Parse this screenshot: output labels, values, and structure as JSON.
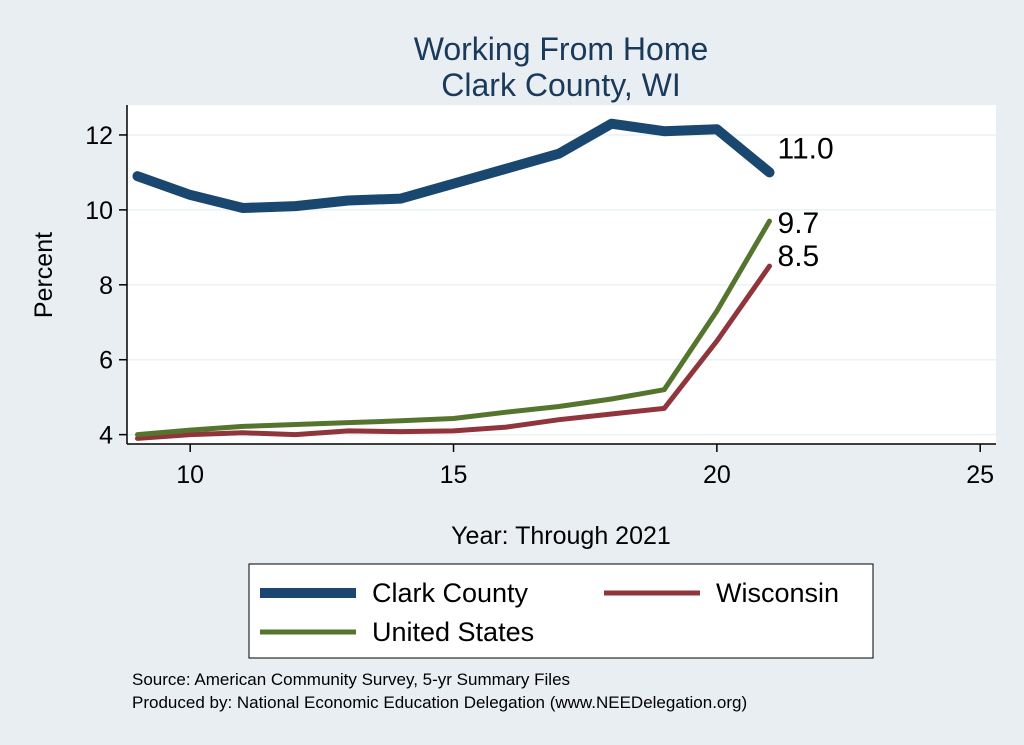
{
  "chart_data": {
    "type": "line",
    "title": [
      "Working From Home",
      "Clark County, WI"
    ],
    "xlabel": "Year: Through 2021",
    "ylabel": "Percent",
    "xlim": [
      8.8,
      25.3
    ],
    "ylim": [
      3.75,
      12.8
    ],
    "xticks": [
      10,
      15,
      20,
      25
    ],
    "yticks": [
      4,
      6,
      8,
      10,
      12
    ],
    "x": [
      9,
      10,
      11,
      12,
      13,
      14,
      15,
      16,
      17,
      18,
      19,
      20,
      21
    ],
    "series": [
      {
        "name": "Clark County",
        "color": "#1a476f",
        "values": [
          10.9,
          10.4,
          10.05,
          10.1,
          10.25,
          10.3,
          10.7,
          11.1,
          11.5,
          12.3,
          12.1,
          12.15,
          11.0
        ],
        "end_label": "11.0"
      },
      {
        "name": "Wisconsin",
        "color": "#90353b",
        "values": [
          3.9,
          4.0,
          4.05,
          4.0,
          4.1,
          4.08,
          4.1,
          4.2,
          4.4,
          4.55,
          4.7,
          6.5,
          8.5
        ],
        "end_label": "8.5"
      },
      {
        "name": "United States",
        "color": "#55752f",
        "values": [
          4.0,
          4.12,
          4.22,
          4.27,
          4.32,
          4.37,
          4.43,
          4.6,
          4.75,
          4.95,
          5.2,
          7.3,
          9.7
        ],
        "end_label": "9.7"
      }
    ],
    "legend": {
      "position": "bottom",
      "entries": [
        "Clark County",
        "Wisconsin",
        "United States"
      ]
    },
    "notes": [
      "Source: American Community Survey, 5-yr Summary Files",
      "Produced by: National Economic Education Delegation (www.NEEDelegation.org)"
    ]
  }
}
